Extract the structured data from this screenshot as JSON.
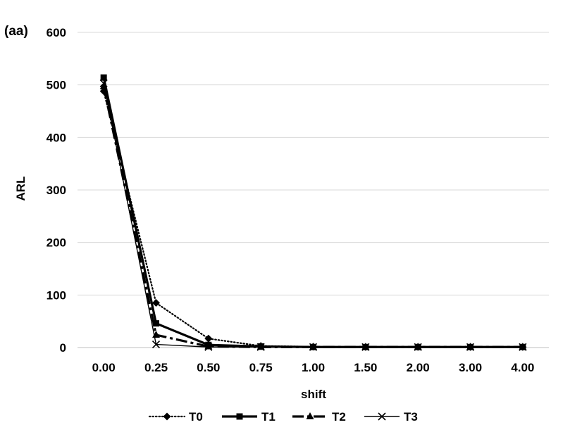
{
  "chart_data": {
    "type": "line",
    "panel_label": "(aa)",
    "xlabel": "shift",
    "ylabel": "ARL",
    "categories": [
      "0.00",
      "0.25",
      "0.50",
      "0.75",
      "1.00",
      "1.50",
      "2.00",
      "3.00",
      "4.00"
    ],
    "ylim": [
      0,
      600
    ],
    "yticks": [
      0,
      100,
      200,
      300,
      400,
      500,
      600
    ],
    "grid": "horizontal",
    "legend_position": "bottom",
    "series": [
      {
        "name": "T0",
        "line_style": "dotted",
        "marker": "diamond",
        "color": "#000000",
        "values": [
          488,
          85,
          17,
          3,
          1.5,
          1,
          1,
          1,
          1
        ]
      },
      {
        "name": "T1",
        "line_style": "solid-thick",
        "marker": "square",
        "color": "#000000",
        "values": [
          514,
          46,
          5,
          2,
          1,
          1,
          1,
          1,
          1
        ]
      },
      {
        "name": "T2",
        "line_style": "long-dash-dot",
        "marker": "triangle",
        "color": "#000000",
        "values": [
          497,
          24,
          2,
          1,
          1,
          1,
          1,
          1,
          1
        ]
      },
      {
        "name": "T3",
        "line_style": "solid-thin",
        "marker": "x",
        "color": "#000000",
        "values": [
          503,
          6,
          1,
          1,
          1,
          1,
          1,
          1,
          1
        ]
      }
    ]
  }
}
